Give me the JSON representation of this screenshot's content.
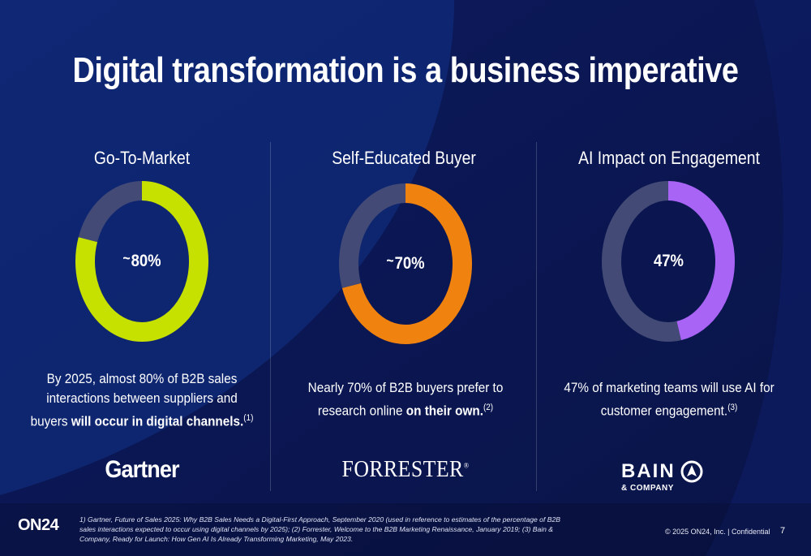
{
  "slide": {
    "title": "Digital transformation is a business imperative",
    "page_number": "7",
    "copyright": "© 2025 ON24, Inc.  |  Confidential",
    "brand": "ON24",
    "footnote": "1) Gartner, Future of Sales 2025: Why B2B Sales Needs a Digital-First Approach, September 2020 (used in reference to estimates of the percentage of B2B sales interactions expected to occur using digital channels by 2025); (2) Forrester, Welcome to the B2B Marketing Renaissance, January 2019; (3) Bain & Company, Ready for Launch: How Gen AI Is Already Transforming Marketing, May 2023."
  },
  "columns": [
    {
      "heading": "Go-To-Market",
      "percent": 80,
      "label_prefix": "~",
      "label_value": "80%",
      "color": "#c6e000",
      "remainder_color": "#424a75",
      "text_plain": "By 2025, almost 80% of B2B sales interactions between suppliers and buyers ",
      "text_bold": "will occur in digital channels.",
      "ref": "(1)",
      "logo": "Gartner"
    },
    {
      "heading": "Self-Educated Buyer",
      "percent": 70,
      "label_prefix": "~",
      "label_value": "70%",
      "color": "#f0830f",
      "remainder_color": "#424a75",
      "text_plain": "Nearly 70% of B2B buyers prefer to research online ",
      "text_bold": "on their own.",
      "ref": "(2)",
      "logo": "FORRESTER",
      "logo_mark": "®"
    },
    {
      "heading": "AI Impact on Engagement",
      "percent": 47,
      "label_prefix": "",
      "label_value": "47%",
      "color": "#a864f5",
      "remainder_color": "#424a75",
      "text_plain": "47% of marketing teams will use AI for customer engagement.",
      "text_bold": "",
      "ref": "(3)",
      "logo": "BAIN",
      "logo_sub": "& COMPANY"
    }
  ]
}
